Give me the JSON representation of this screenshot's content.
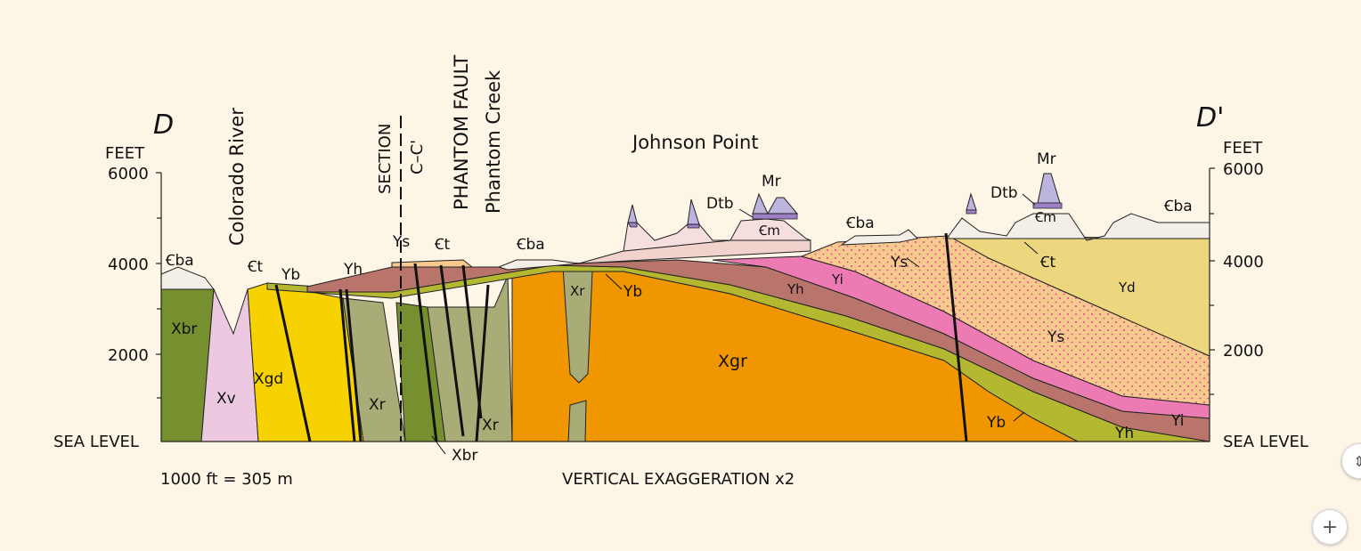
{
  "section": {
    "label_left": "D",
    "label_right": "D'",
    "units_left": "FEET",
    "units_right": "FEET",
    "elevations": [
      "6000",
      "4000",
      "2000"
    ],
    "sea_level": "SEA LEVEL",
    "scale_note": "1000 ft = 305 m",
    "exaggeration_note": "VERTICAL EXAGGERATION x2",
    "place_names": {
      "colorado_river": "Colorado River",
      "section": "SECTION",
      "section_ref": "C–C'",
      "phantom_fault": "PHANTOM FAULT",
      "phantom_creek": "Phantom Creek",
      "johnson_point": "Johnson Point"
    },
    "units": {
      "cba": "Ꞓba",
      "ct": "Ꞓt",
      "cm": "Ꞓm",
      "mr": "Mr",
      "dtb": "Dtb",
      "ys": "Ys",
      "yb": "Yb",
      "yh": "Yh",
      "yi": "Yi",
      "yd": "Yd",
      "xbr": "Xbr",
      "xv": "Xv",
      "xgd": "Xgd",
      "xr": "Xr",
      "xgr": "Xgr"
    },
    "colors": {
      "xbr": "#76902f",
      "xv": "#ecc9e0",
      "xgd": "#f5d200",
      "xr": "#a9ac76",
      "xgr": "#ef9600",
      "yb": "#b3b830",
      "yh": "#b9756b",
      "yi": "#ec7bb4",
      "ys": "#f6c98f",
      "yd": "#ecd67e",
      "ct": "#f2d2cc",
      "cm": "#f7dede",
      "cba": "#f4efe6",
      "dtb": "#9c7fc4",
      "mr": "#bcb4dc"
    }
  },
  "controls": {
    "zoom_in": "+",
    "side": "⇕"
  }
}
